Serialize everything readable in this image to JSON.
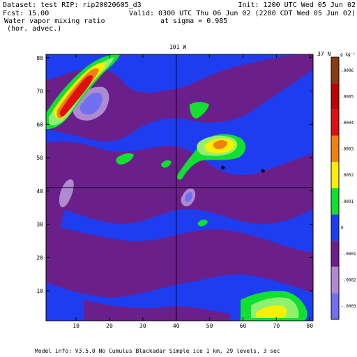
{
  "header": {
    "dataset": "Dataset: test   RIP: rip20020605_d3",
    "init": "Init: 1200 UTC Wed 05 Jun 02",
    "fcst": "Fcst:    15.00",
    "valid": "Valid: 0300 UTC Thu 06 Jun 02 (2200 CDT Wed 05 Jun 02)",
    "field_line1": "Water vapor mixing ratio",
    "field_line2": "(hor. advec.)",
    "sigma": "at sigma = 0.985"
  },
  "map": {
    "top_label": "101 W",
    "right_label": "37 N",
    "units": "g kg⁻¹"
  },
  "footer": {
    "model_info": "Model info: V3.5.0  No Cumulus  Blackadar   Simple ice     1 km,   29 levels,      3 sec"
  },
  "colors": {
    "background_blue": "#1f3df0",
    "purple": "#6b1f8a",
    "light_purple": "#b08ad0",
    "green": "#10e030",
    "light_green": "#90f070",
    "yellow": "#f8f000",
    "orange": "#f08010",
    "red": "#e01010",
    "dark_red": "#a00000",
    "periwinkle": "#7070f0"
  },
  "chart_data": {
    "type": "heatmap",
    "title": "Water vapor mixing ratio (hor. advec.)",
    "xlim": [
      1,
      81
    ],
    "ylim": [
      1,
      81
    ],
    "x_ticks": [
      10,
      20,
      30,
      40,
      50,
      60,
      70,
      80
    ],
    "y_ticks": [
      10,
      20,
      30,
      40,
      50,
      60,
      70,
      80
    ],
    "crosshair": {
      "x": 40,
      "y": 41
    },
    "colorbar": {
      "labels": [
        ".0006",
        ".0005",
        ".0004",
        ".0003",
        ".0002",
        ".0001",
        "0",
        "-.0001",
        "-.0002",
        "-.0003"
      ],
      "colors": [
        "#8b3a10",
        "#c00000",
        "#e01010",
        "#f08010",
        "#f8f000",
        "#10e030",
        "#1f3df0",
        "#6b1f8a",
        "#b08ad0",
        "#7070f0"
      ]
    },
    "station_points": [
      {
        "x": 54,
        "y": 47
      },
      {
        "x": 66,
        "y": 46
      }
    ]
  }
}
